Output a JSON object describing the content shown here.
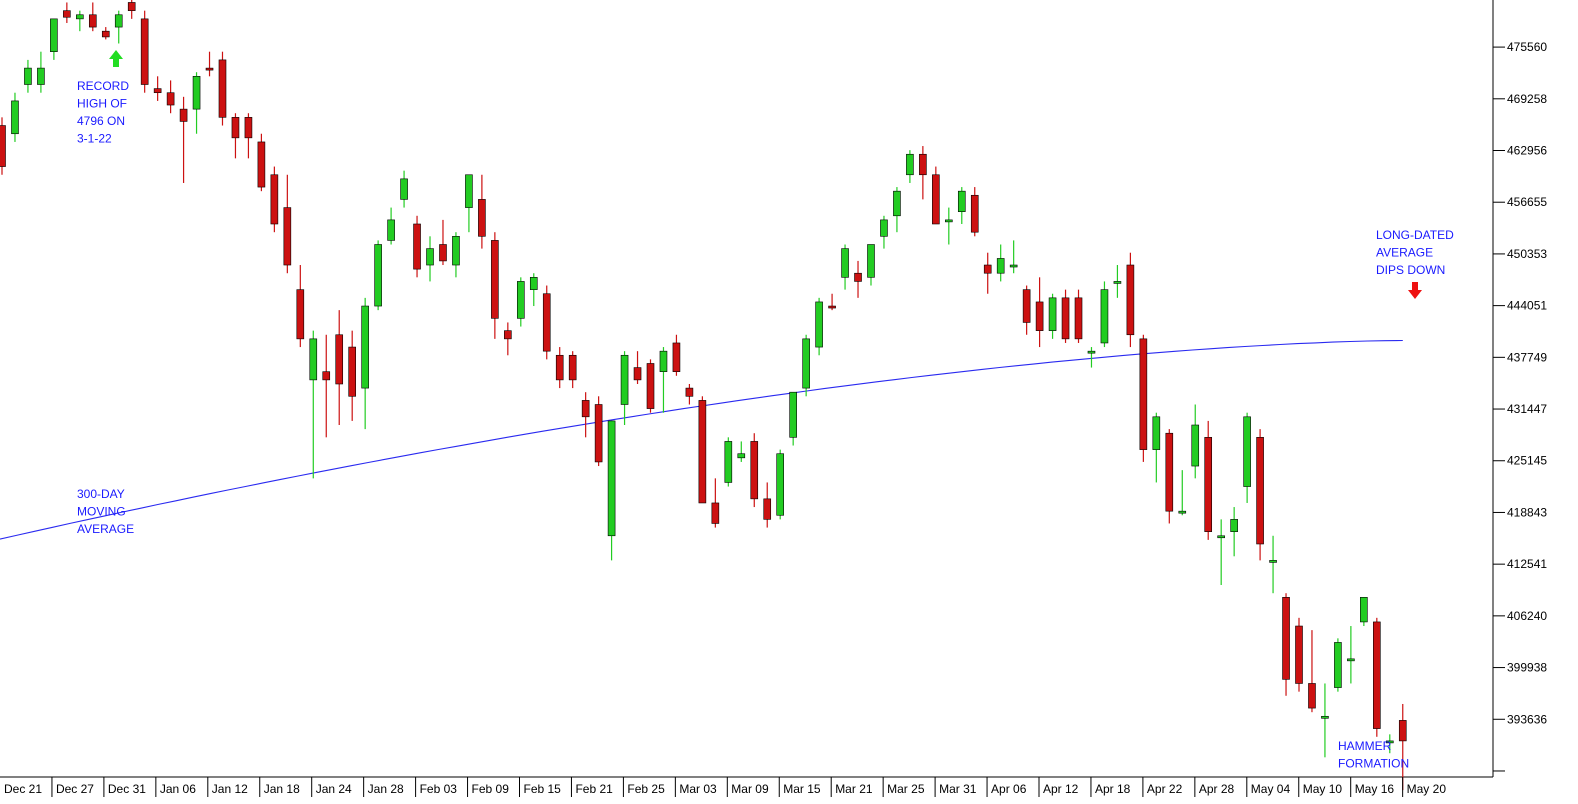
{
  "colors": {
    "up": "#22cc22",
    "down": "#cc1111",
    "moving_average": "#2a2af0",
    "annotation": "#1a1aff",
    "arrow_up": "#22dd22",
    "arrow_down": "#ee1111",
    "axis": "#000000"
  },
  "chart_data": {
    "type": "candlestick",
    "title": "",
    "xlabel": "",
    "ylabel": "",
    "ylim": [
      386600,
      481300
    ],
    "y_ticks": [
      475560,
      469258,
      462956,
      456655,
      450353,
      444051,
      437749,
      431447,
      425145,
      418843,
      412541,
      406240,
      399938,
      393636
    ],
    "x_ticks": [
      "Dec 21",
      "Dec 27",
      "Dec 31",
      "Jan 06",
      "Jan 12",
      "Jan 18",
      "Jan 24",
      "Jan 28",
      "Feb 03",
      "Feb 09",
      "Feb 15",
      "Feb 21",
      "Feb 25",
      "Mar 03",
      "Mar 09",
      "Mar 15",
      "Mar 21",
      "Mar 25",
      "Mar 31",
      "Apr 06",
      "Apr 12",
      "Apr 18",
      "Apr 22",
      "Apr 28",
      "May 04",
      "May 10",
      "May 16",
      "May 20"
    ],
    "candles": [
      {
        "o": 466000,
        "h": 467000,
        "l": 460000,
        "c": 461000
      },
      {
        "o": 465000,
        "h": 470000,
        "l": 464000,
        "c": 469000
      },
      {
        "o": 471000,
        "h": 474000,
        "l": 470000,
        "c": 473000
      },
      {
        "o": 471000,
        "h": 475000,
        "l": 470000,
        "c": 473000
      },
      {
        "o": 475000,
        "h": 479000,
        "l": 474000,
        "c": 479000
      },
      {
        "o": 480000,
        "h": 481000,
        "l": 478500,
        "c": 479200
      },
      {
        "o": 479000,
        "h": 480000,
        "l": 477500,
        "c": 479500
      },
      {
        "o": 479500,
        "h": 481000,
        "l": 477500,
        "c": 478000
      },
      {
        "o": 477500,
        "h": 478000,
        "l": 476500,
        "c": 476800
      },
      {
        "o": 478000,
        "h": 480000,
        "l": 476000,
        "c": 479500
      },
      {
        "o": 481000,
        "h": 482000,
        "l": 479000,
        "c": 480000
      },
      {
        "o": 479000,
        "h": 480000,
        "l": 470000,
        "c": 471000
      },
      {
        "o": 470500,
        "h": 472000,
        "l": 469000,
        "c": 470000
      },
      {
        "o": 470000,
        "h": 471500,
        "l": 467500,
        "c": 468500
      },
      {
        "o": 468000,
        "h": 469500,
        "l": 459000,
        "c": 466500
      },
      {
        "o": 468000,
        "h": 472500,
        "l": 465000,
        "c": 472000
      },
      {
        "o": 473000,
        "h": 475000,
        "l": 472000,
        "c": 472800
      },
      {
        "o": 474000,
        "h": 475000,
        "l": 466000,
        "c": 467000
      },
      {
        "o": 467000,
        "h": 467500,
        "l": 462000,
        "c": 464500
      },
      {
        "o": 467000,
        "h": 467500,
        "l": 462000,
        "c": 464500
      },
      {
        "o": 464000,
        "h": 465000,
        "l": 458000,
        "c": 458500
      },
      {
        "o": 460000,
        "h": 461000,
        "l": 453000,
        "c": 454000
      },
      {
        "o": 456000,
        "h": 460000,
        "l": 448000,
        "c": 449000
      },
      {
        "o": 446000,
        "h": 449000,
        "l": 439000,
        "c": 440000
      },
      {
        "o": 435000,
        "h": 441000,
        "l": 423000,
        "c": 440000
      },
      {
        "o": 436000,
        "h": 440500,
        "l": 428000,
        "c": 435000
      },
      {
        "o": 440500,
        "h": 443500,
        "l": 429500,
        "c": 434500
      },
      {
        "o": 439000,
        "h": 441000,
        "l": 430000,
        "c": 433000
      },
      {
        "o": 434000,
        "h": 445000,
        "l": 429000,
        "c": 444000
      },
      {
        "o": 444000,
        "h": 452000,
        "l": 443500,
        "c": 451500
      },
      {
        "o": 452000,
        "h": 456000,
        "l": 451500,
        "c": 454500
      },
      {
        "o": 457000,
        "h": 460500,
        "l": 456000,
        "c": 459500
      },
      {
        "o": 454000,
        "h": 455000,
        "l": 447500,
        "c": 448500
      },
      {
        "o": 449000,
        "h": 452500,
        "l": 447000,
        "c": 451000
      },
      {
        "o": 451500,
        "h": 454500,
        "l": 449000,
        "c": 449500
      },
      {
        "o": 449000,
        "h": 453000,
        "l": 447500,
        "c": 452500
      },
      {
        "o": 456000,
        "h": 460000,
        "l": 453000,
        "c": 460000
      },
      {
        "o": 457000,
        "h": 460000,
        "l": 451000,
        "c": 452500
      },
      {
        "o": 452000,
        "h": 453000,
        "l": 440000,
        "c": 442500
      },
      {
        "o": 441000,
        "h": 442000,
        "l": 438000,
        "c": 440000
      },
      {
        "o": 442500,
        "h": 447500,
        "l": 441500,
        "c": 447000
      },
      {
        "o": 446000,
        "h": 448000,
        "l": 444000,
        "c": 447500
      },
      {
        "o": 445500,
        "h": 446500,
        "l": 437500,
        "c": 438500
      },
      {
        "o": 438000,
        "h": 439000,
        "l": 434000,
        "c": 435000
      },
      {
        "o": 438000,
        "h": 438500,
        "l": 434000,
        "c": 435000
      },
      {
        "o": 432500,
        "h": 433500,
        "l": 428000,
        "c": 430500
      },
      {
        "o": 432000,
        "h": 433000,
        "l": 424500,
        "c": 425000
      },
      {
        "o": 416000,
        "h": 430000,
        "l": 413000,
        "c": 430000
      },
      {
        "o": 432000,
        "h": 438500,
        "l": 429500,
        "c": 438000
      },
      {
        "o": 436500,
        "h": 438500,
        "l": 434500,
        "c": 435000
      },
      {
        "o": 437000,
        "h": 437500,
        "l": 431000,
        "c": 431500
      },
      {
        "o": 436000,
        "h": 439000,
        "l": 431000,
        "c": 438500
      },
      {
        "o": 439500,
        "h": 440500,
        "l": 435500,
        "c": 436000
      },
      {
        "o": 434000,
        "h": 434500,
        "l": 432000,
        "c": 433000
      },
      {
        "o": 432500,
        "h": 433000,
        "l": 420000,
        "c": 420000
      },
      {
        "o": 420000,
        "h": 423000,
        "l": 417000,
        "c": 417500
      },
      {
        "o": 422500,
        "h": 428000,
        "l": 422000,
        "c": 427500
      },
      {
        "o": 425500,
        "h": 427500,
        "l": 425000,
        "c": 426000
      },
      {
        "o": 427500,
        "h": 428500,
        "l": 419500,
        "c": 420500
      },
      {
        "o": 420500,
        "h": 422500,
        "l": 417000,
        "c": 418000
      },
      {
        "o": 418500,
        "h": 426500,
        "l": 418000,
        "c": 426000
      },
      {
        "o": 428000,
        "h": 433500,
        "l": 427000,
        "c": 433500
      },
      {
        "o": 434000,
        "h": 440500,
        "l": 433000,
        "c": 440000
      },
      {
        "o": 439000,
        "h": 445000,
        "l": 438000,
        "c": 444500
      },
      {
        "o": 444000,
        "h": 445500,
        "l": 443500,
        "c": 443800
      },
      {
        "o": 447500,
        "h": 451500,
        "l": 446000,
        "c": 451000
      },
      {
        "o": 448000,
        "h": 449500,
        "l": 445000,
        "c": 447000
      },
      {
        "o": 447500,
        "h": 451500,
        "l": 446500,
        "c": 451500
      },
      {
        "o": 452500,
        "h": 455000,
        "l": 451000,
        "c": 454500
      },
      {
        "o": 455000,
        "h": 458500,
        "l": 453000,
        "c": 458000
      },
      {
        "o": 460000,
        "h": 463000,
        "l": 459000,
        "c": 462500
      },
      {
        "o": 462500,
        "h": 463500,
        "l": 457000,
        "c": 460000
      },
      {
        "o": 460000,
        "h": 461000,
        "l": 454000,
        "c": 454000
      },
      {
        "o": 454500,
        "h": 456000,
        "l": 451500,
        "c": 454500
      },
      {
        "o": 455500,
        "h": 458500,
        "l": 454000,
        "c": 458000
      },
      {
        "o": 457500,
        "h": 458500,
        "l": 452500,
        "c": 453000
      },
      {
        "o": 449000,
        "h": 450500,
        "l": 445500,
        "c": 448000
      },
      {
        "o": 448000,
        "h": 451500,
        "l": 447000,
        "c": 449800
      },
      {
        "o": 449000,
        "h": 452000,
        "l": 448000,
        "c": 449000
      },
      {
        "o": 446000,
        "h": 446500,
        "l": 440500,
        "c": 442000
      },
      {
        "o": 444500,
        "h": 447500,
        "l": 439000,
        "c": 441000
      },
      {
        "o": 441000,
        "h": 445500,
        "l": 440000,
        "c": 445000
      },
      {
        "o": 445000,
        "h": 446000,
        "l": 439500,
        "c": 440000
      },
      {
        "o": 445000,
        "h": 446000,
        "l": 439500,
        "c": 440000
      },
      {
        "o": 438500,
        "h": 439000,
        "l": 436500,
        "c": 438500
      },
      {
        "o": 439500,
        "h": 447000,
        "l": 439000,
        "c": 446000
      },
      {
        "o": 447000,
        "h": 449000,
        "l": 445000,
        "c": 447000
      },
      {
        "o": 449000,
        "h": 450500,
        "l": 439000,
        "c": 440500
      },
      {
        "o": 440000,
        "h": 440500,
        "l": 425000,
        "c": 426500
      },
      {
        "o": 426500,
        "h": 431000,
        "l": 422500,
        "c": 430500
      },
      {
        "o": 428500,
        "h": 429000,
        "l": 417500,
        "c": 419000
      },
      {
        "o": 419000,
        "h": 424000,
        "l": 418500,
        "c": 419000
      },
      {
        "o": 424500,
        "h": 432000,
        "l": 423000,
        "c": 429500
      },
      {
        "o": 428000,
        "h": 430000,
        "l": 415500,
        "c": 416500
      },
      {
        "o": 416000,
        "h": 418000,
        "l": 410000,
        "c": 416000
      },
      {
        "o": 416500,
        "h": 419500,
        "l": 413500,
        "c": 418000
      },
      {
        "o": 422000,
        "h": 431000,
        "l": 420000,
        "c": 430500
      },
      {
        "o": 428000,
        "h": 429000,
        "l": 413000,
        "c": 415000
      },
      {
        "o": 413000,
        "h": 416000,
        "l": 409000,
        "c": 413000
      },
      {
        "o": 408500,
        "h": 409000,
        "l": 396500,
        "c": 398500
      },
      {
        "o": 405000,
        "h": 406000,
        "l": 397000,
        "c": 398000
      },
      {
        "o": 398000,
        "h": 404500,
        "l": 394500,
        "c": 395000
      },
      {
        "o": 394000,
        "h": 398000,
        "l": 389000,
        "c": 394000
      },
      {
        "o": 397500,
        "h": 403500,
        "l": 397000,
        "c": 403000
      },
      {
        "o": 401000,
        "h": 405000,
        "l": 398000,
        "c": 401000
      },
      {
        "o": 405500,
        "h": 408000,
        "l": 405000,
        "c": 408500
      },
      {
        "o": 405500,
        "h": 406000,
        "l": 391500,
        "c": 392500
      },
      {
        "o": 391000,
        "h": 391800,
        "l": 389500,
        "c": 391000
      },
      {
        "o": 393500,
        "h": 395500,
        "l": 385000,
        "c": 391000
      }
    ],
    "moving_average": {
      "label": "300-DAY MOVING AVERAGE",
      "start": 415600,
      "end": 439800
    },
    "annotations": [
      {
        "lines": [
          "RECORD",
          "HIGH OF",
          "4796 ON",
          "3-1-22"
        ],
        "arrow": "up"
      },
      {
        "lines": [
          "300-DAY",
          "MOVING",
          "AVERAGE"
        ]
      },
      {
        "lines": [
          "LONG-DATED",
          "AVERAGE",
          "DIPS DOWN"
        ],
        "arrow": "down"
      },
      {
        "lines": [
          "HAMMER",
          "FORMATION"
        ]
      }
    ]
  }
}
